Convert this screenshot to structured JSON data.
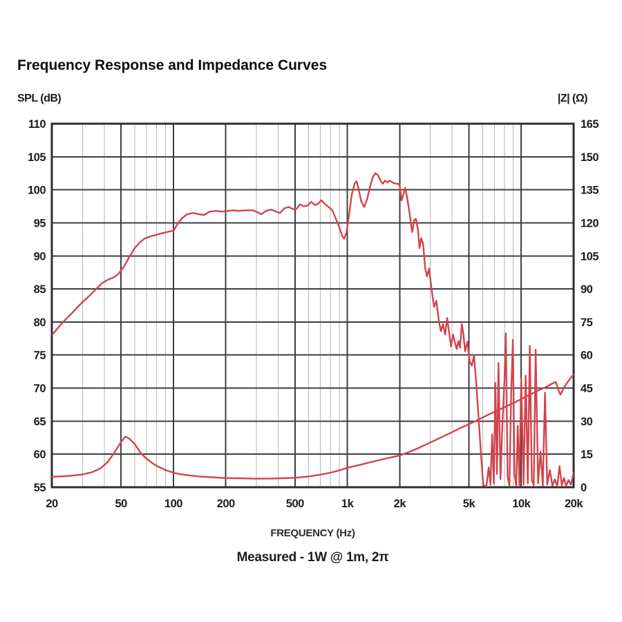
{
  "header": {
    "title": "Frequency Response and Impedance Curves"
  },
  "chart_data": {
    "type": "line",
    "title": "Frequency Response and Impedance Curves",
    "xlabel": "FREQUENCY (Hz)",
    "ylabel_left": "SPL (dB)",
    "ylabel_right": "|Z| (Ω)",
    "caption": "Measured - 1W @ 1m, 2π",
    "x_scale": "log",
    "xlim": [
      20,
      20000
    ],
    "ylim_left": [
      55,
      110
    ],
    "ylim_right": [
      0,
      165
    ],
    "grid": {
      "on": true,
      "major_color": "#3d3d3d",
      "minor_color": "#b4b4b4",
      "border_color": "#2e2e2e"
    },
    "legend": "none",
    "x_ticks": [
      {
        "f": 20,
        "label": "20"
      },
      {
        "f": 50,
        "label": "50"
      },
      {
        "f": 100,
        "label": "100"
      },
      {
        "f": 200,
        "label": "200"
      },
      {
        "f": 500,
        "label": "500"
      },
      {
        "f": 1000,
        "label": "1k"
      },
      {
        "f": 2000,
        "label": "2k"
      },
      {
        "f": 5000,
        "label": "5k"
      },
      {
        "f": 10000,
        "label": "10k"
      },
      {
        "f": 20000,
        "label": "20k"
      }
    ],
    "x_minor_gridlines": [
      30,
      40,
      60,
      70,
      80,
      90,
      300,
      400,
      600,
      700,
      800,
      900,
      3000,
      4000,
      6000,
      7000,
      8000,
      9000
    ],
    "y_left_ticks": [
      110,
      105,
      100,
      95,
      90,
      85,
      80,
      75,
      70,
      65,
      60,
      55
    ],
    "y_right_ticks": [
      165,
      150,
      135,
      120,
      105,
      90,
      75,
      60,
      45,
      30,
      15,
      0
    ],
    "series": [
      {
        "name": "SPL",
        "axis": "left",
        "unit": "dB",
        "color": "#d2434b",
        "points": [
          [
            20,
            78
          ],
          [
            22,
            79.3
          ],
          [
            24,
            80.4
          ],
          [
            26,
            81.3
          ],
          [
            28,
            82.2
          ],
          [
            30,
            83
          ],
          [
            33,
            84
          ],
          [
            36,
            85
          ],
          [
            39,
            85.9
          ],
          [
            42,
            86.4
          ],
          [
            45,
            86.7
          ],
          [
            48,
            87.2
          ],
          [
            52,
            88.4
          ],
          [
            56,
            89.9
          ],
          [
            60,
            91.2
          ],
          [
            64,
            92
          ],
          [
            68,
            92.6
          ],
          [
            73,
            92.9
          ],
          [
            80,
            93.2
          ],
          [
            88,
            93.5
          ],
          [
            95,
            93.7
          ],
          [
            100,
            93.8
          ],
          [
            105,
            94.7
          ],
          [
            112,
            95.7
          ],
          [
            120,
            96.3
          ],
          [
            130,
            96.5
          ],
          [
            140,
            96.3
          ],
          [
            150,
            96.2
          ],
          [
            162,
            96.7
          ],
          [
            175,
            96.8
          ],
          [
            190,
            96.7
          ],
          [
            205,
            96.8
          ],
          [
            220,
            96.9
          ],
          [
            240,
            96.8
          ],
          [
            260,
            96.9
          ],
          [
            285,
            96.9
          ],
          [
            305,
            96.6
          ],
          [
            320,
            96.3
          ],
          [
            340,
            96.8
          ],
          [
            365,
            97
          ],
          [
            390,
            96.7
          ],
          [
            410,
            96.5
          ],
          [
            435,
            97.2
          ],
          [
            460,
            97.4
          ],
          [
            485,
            97.1
          ],
          [
            510,
            97.1
          ],
          [
            535,
            97.8
          ],
          [
            560,
            97.5
          ],
          [
            590,
            97.6
          ],
          [
            620,
            98.2
          ],
          [
            650,
            97.7
          ],
          [
            680,
            97.9
          ],
          [
            710,
            98.4
          ],
          [
            740,
            97.9
          ],
          [
            780,
            97.4
          ],
          [
            820,
            96.9
          ],
          [
            860,
            95.6
          ],
          [
            900,
            94.3
          ],
          [
            935,
            93
          ],
          [
            960,
            92.6
          ],
          [
            990,
            93.6
          ],
          [
            1020,
            96
          ],
          [
            1060,
            99.2
          ],
          [
            1100,
            100.9
          ],
          [
            1130,
            101.3
          ],
          [
            1160,
            100.2
          ],
          [
            1200,
            98.3
          ],
          [
            1250,
            97.4
          ],
          [
            1300,
            98.6
          ],
          [
            1350,
            100.4
          ],
          [
            1400,
            101.9
          ],
          [
            1450,
            102.5
          ],
          [
            1500,
            102.2
          ],
          [
            1550,
            101.4
          ],
          [
            1600,
            100.9
          ],
          [
            1650,
            101.4
          ],
          [
            1700,
            101.1
          ],
          [
            1750,
            101.4
          ],
          [
            1800,
            101.2
          ],
          [
            1850,
            101
          ],
          [
            1950,
            100.9
          ],
          [
            2000,
            100.7
          ],
          [
            2050,
            98.4
          ],
          [
            2100,
            99.3
          ],
          [
            2150,
            100.3
          ],
          [
            2200,
            99
          ],
          [
            2270,
            96.8
          ],
          [
            2320,
            94.9
          ],
          [
            2360,
            93.6
          ],
          [
            2420,
            95.4
          ],
          [
            2480,
            95.6
          ],
          [
            2550,
            93.9
          ],
          [
            2600,
            91.2
          ],
          [
            2660,
            92.7
          ],
          [
            2730,
            91.8
          ],
          [
            2800,
            88.2
          ],
          [
            2870,
            86.9
          ],
          [
            2950,
            88.1
          ],
          [
            3050,
            84.9
          ],
          [
            3150,
            82.3
          ],
          [
            3250,
            83.2
          ],
          [
            3350,
            80.4
          ],
          [
            3450,
            78.6
          ],
          [
            3550,
            79.7
          ],
          [
            3650,
            78.1
          ],
          [
            3750,
            80.6
          ],
          [
            3850,
            78.4
          ],
          [
            3950,
            76.3
          ],
          [
            4050,
            78.1
          ],
          [
            4150,
            77
          ],
          [
            4250,
            75.9
          ],
          [
            4350,
            77.1
          ],
          [
            4450,
            76.1
          ],
          [
            4550,
            79.7
          ],
          [
            4650,
            78.2
          ],
          [
            4750,
            75.6
          ],
          [
            4900,
            77
          ],
          [
            5050,
            74
          ],
          [
            5200,
            73.4
          ],
          [
            5350,
            75
          ],
          [
            5500,
            71
          ],
          [
            5700,
            65
          ],
          [
            5900,
            59
          ],
          [
            6050,
            55.3
          ],
          [
            6300,
            55.1
          ],
          [
            6500,
            58
          ],
          [
            6650,
            55.4
          ],
          [
            6800,
            63
          ],
          [
            6950,
            55.6
          ],
          [
            7100,
            70.8
          ],
          [
            7250,
            57
          ],
          [
            7400,
            73.8
          ],
          [
            7600,
            56.2
          ],
          [
            7800,
            65
          ],
          [
            8000,
            71
          ],
          [
            8150,
            78.3
          ],
          [
            8350,
            56.6
          ],
          [
            8550,
            55.2
          ],
          [
            8750,
            69
          ],
          [
            8950,
            77.3
          ],
          [
            9150,
            57
          ],
          [
            9350,
            55.2
          ],
          [
            9550,
            64.3
          ],
          [
            9750,
            55.3
          ],
          [
            10000,
            71.4
          ],
          [
            10300,
            55.4
          ],
          [
            10600,
            71.9
          ],
          [
            10900,
            55.6
          ],
          [
            11200,
            76.4
          ],
          [
            11500,
            56.1
          ],
          [
            11800,
            55.3
          ],
          [
            12100,
            75.8
          ],
          [
            12500,
            55.6
          ],
          [
            12900,
            60.4
          ],
          [
            13300,
            55.2
          ],
          [
            13700,
            69.3
          ],
          [
            14100,
            55.4
          ],
          [
            14600,
            57.6
          ],
          [
            15100,
            55.2
          ],
          [
            15600,
            56.2
          ],
          [
            16100,
            55.1
          ],
          [
            16600,
            58.2
          ],
          [
            17100,
            55.3
          ],
          [
            17600,
            56.4
          ],
          [
            18100,
            55.2
          ],
          [
            18700,
            56.1
          ],
          [
            19300,
            55.4
          ],
          [
            20000,
            57.2
          ]
        ]
      },
      {
        "name": "Impedance",
        "axis": "right",
        "unit": "Ω",
        "color": "#d2434b",
        "points": [
          [
            20,
            4.7
          ],
          [
            25,
            5.1
          ],
          [
            30,
            5.8
          ],
          [
            34,
            6.8
          ],
          [
            38,
            8.5
          ],
          [
            42,
            11.5
          ],
          [
            46,
            16
          ],
          [
            50,
            20.5
          ],
          [
            53,
            23
          ],
          [
            56,
            22
          ],
          [
            60,
            19.5
          ],
          [
            65,
            15.5
          ],
          [
            70,
            13
          ],
          [
            76,
            10.8
          ],
          [
            82,
            9.3
          ],
          [
            90,
            7.8
          ],
          [
            100,
            6.6
          ],
          [
            110,
            5.9
          ],
          [
            125,
            5.3
          ],
          [
            140,
            4.9
          ],
          [
            160,
            4.6
          ],
          [
            185,
            4.3
          ],
          [
            210,
            4.15
          ],
          [
            250,
            4
          ],
          [
            300,
            3.9
          ],
          [
            360,
            3.95
          ],
          [
            430,
            4.1
          ],
          [
            500,
            4.3
          ],
          [
            600,
            4.9
          ],
          [
            700,
            5.7
          ],
          [
            800,
            6.6
          ],
          [
            900,
            7.7
          ],
          [
            1000,
            8.8
          ],
          [
            1200,
            10.3
          ],
          [
            1400,
            11.6
          ],
          [
            1600,
            12.7
          ],
          [
            1800,
            13.6
          ],
          [
            2000,
            14.4
          ],
          [
            2300,
            16.2
          ],
          [
            2600,
            18
          ],
          [
            3000,
            20.3
          ],
          [
            3500,
            22.8
          ],
          [
            4000,
            25
          ],
          [
            4500,
            27
          ],
          [
            5000,
            28.6
          ],
          [
            5600,
            30.5
          ],
          [
            6300,
            32.5
          ],
          [
            7000,
            34.2
          ],
          [
            8000,
            36.3
          ],
          [
            9000,
            38.2
          ],
          [
            10000,
            40
          ],
          [
            11000,
            41.7
          ],
          [
            12000,
            43.2
          ],
          [
            13000,
            44.5
          ],
          [
            14000,
            45.6
          ],
          [
            15000,
            47
          ],
          [
            15800,
            47.8
          ],
          [
            16300,
            44.5
          ],
          [
            16800,
            42
          ],
          [
            17300,
            44
          ],
          [
            18000,
            46.5
          ],
          [
            18800,
            48.5
          ],
          [
            19400,
            50
          ],
          [
            20000,
            51
          ]
        ]
      }
    ]
  }
}
